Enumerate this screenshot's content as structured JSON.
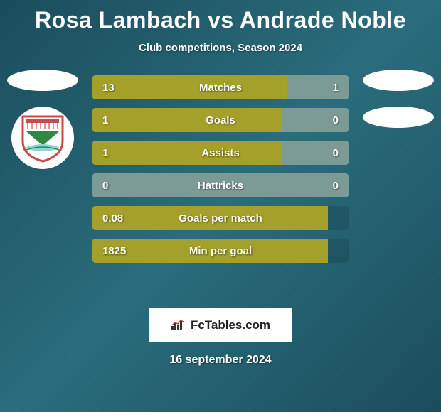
{
  "title": "Rosa Lambach vs Andrade Noble",
  "subtitle": "Club competitions, Season 2024",
  "date": "16 september 2024",
  "fctables_label": "FcTables.com",
  "colors": {
    "bar_fill": "#a4a029",
    "secondary_fill": "#7c9a96",
    "crest_red": "#c94b49",
    "crest_green": "#2d8a3e",
    "crest_cyan": "#8fd4d9"
  },
  "rows": [
    {
      "label": "Matches",
      "left_val": "13",
      "right_val": "1",
      "left_pct": 76,
      "right_pct": 24,
      "left_color": "#a4a029",
      "right_color": "#7c9a96"
    },
    {
      "label": "Goals",
      "left_val": "1",
      "right_val": "0",
      "left_pct": 74,
      "right_pct": 26,
      "left_color": "#a4a029",
      "right_color": "#7c9a96"
    },
    {
      "label": "Assists",
      "left_val": "1",
      "right_val": "0",
      "left_pct": 74,
      "right_pct": 26,
      "left_color": "#a4a029",
      "right_color": "#7c9a96"
    },
    {
      "label": "Hattricks",
      "left_val": "0",
      "right_val": "0",
      "left_pct": 50,
      "right_pct": 50,
      "left_color": "#7c9a96",
      "right_color": "#7c9a96"
    },
    {
      "label": "Goals per match",
      "left_val": "0.08",
      "right_val": "",
      "left_pct": 92,
      "right_pct": 0,
      "left_color": "#a4a029",
      "right_color": ""
    },
    {
      "label": "Min per goal",
      "left_val": "1825",
      "right_val": "",
      "left_pct": 92,
      "right_pct": 0,
      "left_color": "#a4a029",
      "right_color": ""
    }
  ]
}
